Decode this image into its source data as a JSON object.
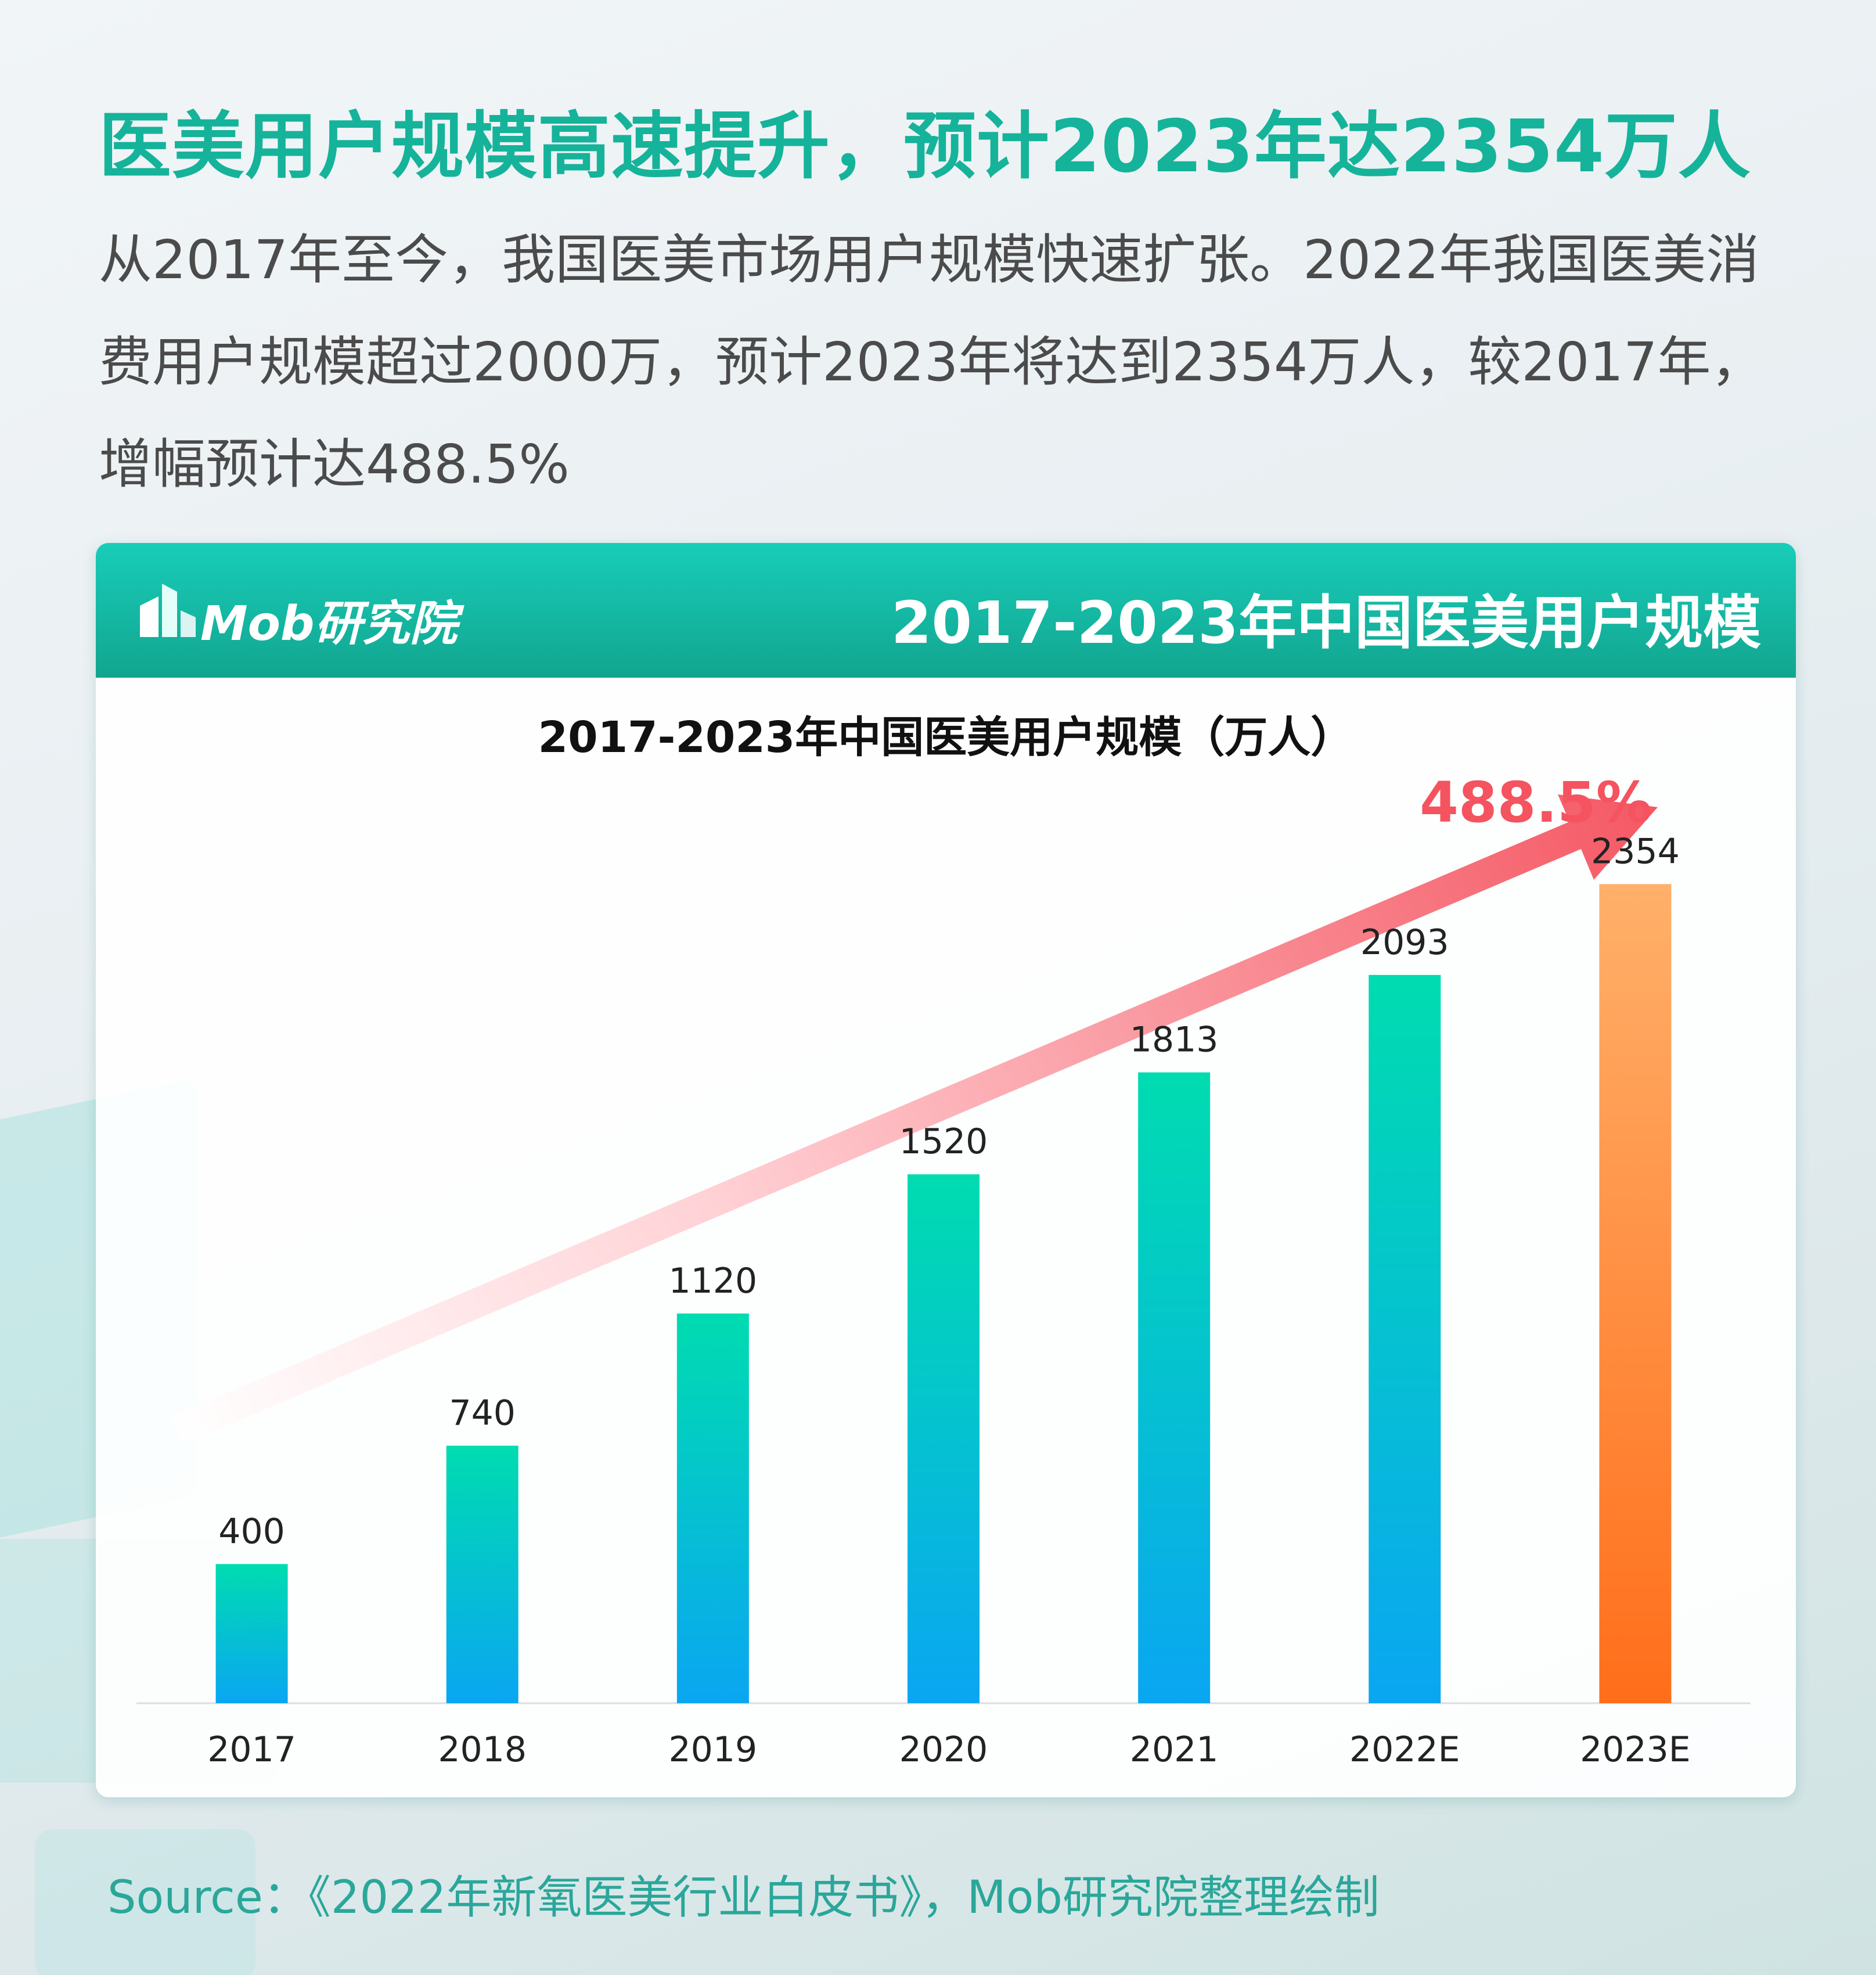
{
  "headline": "医美用户规模高速提升，预计2023年达2354万人",
  "intro": "从2017年至今，我国医美市场用户规模快速扩张。2022年我国医美消费用户规模超过2000万，预计2023年将达到2354万人，较2017年，增幅预计达488.5%",
  "card": {
    "logo_text": "Mob研究院",
    "header_title": "2017-2023年中国医美用户规模"
  },
  "source": "Source：《2022年新氧医美行业白皮书》，Mob研究院整理绘制",
  "colors": {
    "accent": "#15b39a",
    "bar_top": "#00dcb0",
    "bar_bottom": "#0aa6f2",
    "highlight_top": "#ffb06a",
    "highlight_bottom": "#ff6e1a",
    "growth": "#f4535f"
  },
  "chart_data": {
    "type": "bar",
    "title": "2017-2023年中国医美用户规模（万人）",
    "categories": [
      "2017",
      "2018",
      "2019",
      "2020",
      "2021",
      "2022E",
      "2023E"
    ],
    "values": [
      400,
      740,
      1120,
      1520,
      1813,
      2093,
      2354
    ],
    "data_labels": [
      "400",
      "740",
      "1120",
      "1520",
      "1813",
      "2093",
      "2354"
    ],
    "ylim": [
      0,
      2500
    ],
    "grid": false,
    "legend": "none",
    "highlight_category": "2023E",
    "growth_annotation": "488.5%"
  }
}
